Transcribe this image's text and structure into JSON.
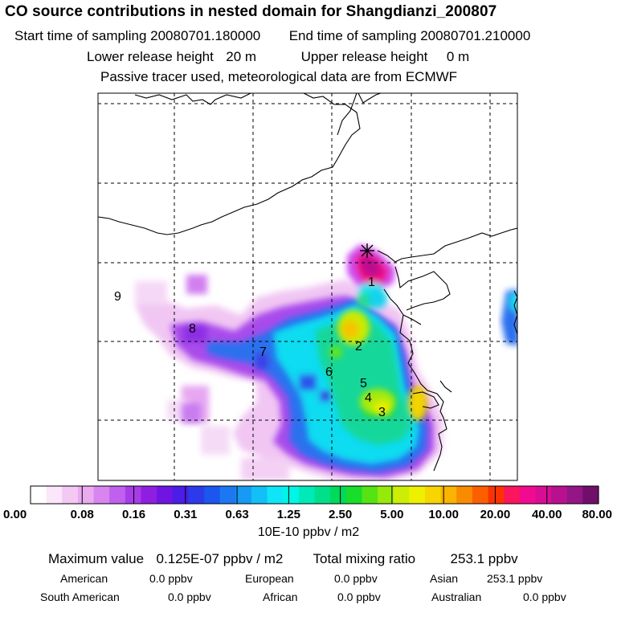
{
  "header": {
    "title": "CO  source contributions in nested domain for Shangdianzi_200807",
    "start_label": "Start time of sampling",
    "start_value": "20080701.180000",
    "end_label": "End time of sampling",
    "end_value": "20080701.210000",
    "lower_label": "Lower release height",
    "lower_value": "20 m",
    "upper_label": "Upper release height",
    "upper_value": "0 m",
    "tracer_note": "Passive tracer used, meteorological data are from ECMWF"
  },
  "map": {
    "receptor_marker": "star-icon",
    "region_labels": [
      "1",
      "2",
      "3",
      "4",
      "5",
      "6",
      "7",
      "8",
      "9"
    ]
  },
  "colorbar": {
    "tick_labels": [
      "0.00",
      "0.08",
      "0.16",
      "0.31",
      "0.63",
      "1.25",
      "2.50",
      "5.00",
      "10.00",
      "20.00",
      "40.00",
      "80.00"
    ],
    "colors": [
      "#ffffff",
      "#fbe6fb",
      "#f3c9f3",
      "#eaaaf0",
      "#d985f0",
      "#c060ee",
      "#a73ce8",
      "#8f1fe0",
      "#6f14e2",
      "#4a1ee6",
      "#2c3ae9",
      "#1b56ee",
      "#1a78f2",
      "#169af4",
      "#12bff6",
      "#0ee6f7",
      "#00f5e6",
      "#00e9b9",
      "#00df8a",
      "#00d95c",
      "#18dd2a",
      "#55e314",
      "#96ea0a",
      "#ccee05",
      "#eef000",
      "#f7d500",
      "#f9b300",
      "#fa8a00",
      "#fb5f00",
      "#fb3300",
      "#f9165c",
      "#f20a90",
      "#d80d95",
      "#b8118f",
      "#941586",
      "#700f6a"
    ],
    "unit": "10E-10 ppbv / m2"
  },
  "summary": {
    "max_label": "Maximum value",
    "max_value": "0.125E-07 ppbv / m2",
    "total_label": "Total mixing ratio",
    "total_value": "253.1 ppbv",
    "contributions": [
      {
        "name": "American",
        "value": "0.0 ppbv"
      },
      {
        "name": "European",
        "value": "0.0 ppbv"
      },
      {
        "name": "Asian",
        "value": "253.1 ppbv"
      },
      {
        "name": "South American",
        "value": "0.0 ppbv"
      },
      {
        "name": "African",
        "value": "0.0 ppbv"
      },
      {
        "name": "Australian",
        "value": "0.0 ppbv"
      }
    ]
  }
}
